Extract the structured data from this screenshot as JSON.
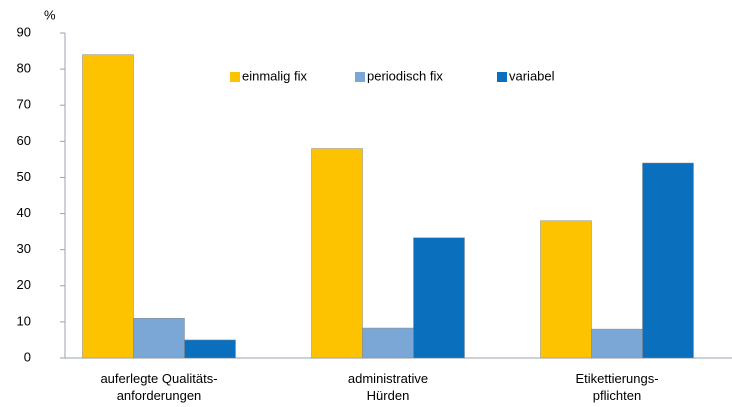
{
  "chart_data": {
    "type": "bar",
    "y_axis_label": "%",
    "categories": [
      "auferlegte Qualitäts-\nanforderungen",
      "administrative\nHürden",
      "Etikettierungs-\npflichten"
    ],
    "series": [
      {
        "name": "einmalig fix",
        "color": "#fdc300",
        "values": [
          84,
          58,
          38
        ]
      },
      {
        "name": "periodisch fix",
        "color": "#7ba7d7",
        "values": [
          11,
          8.3,
          8
        ]
      },
      {
        "name": "variabel",
        "color": "#0a6fbd",
        "values": [
          5,
          33.3,
          54
        ]
      }
    ],
    "ylim": [
      0,
      90
    ],
    "yticks": [
      0,
      10,
      20,
      30,
      40,
      50,
      60,
      70,
      80,
      90
    ],
    "grid": false
  }
}
